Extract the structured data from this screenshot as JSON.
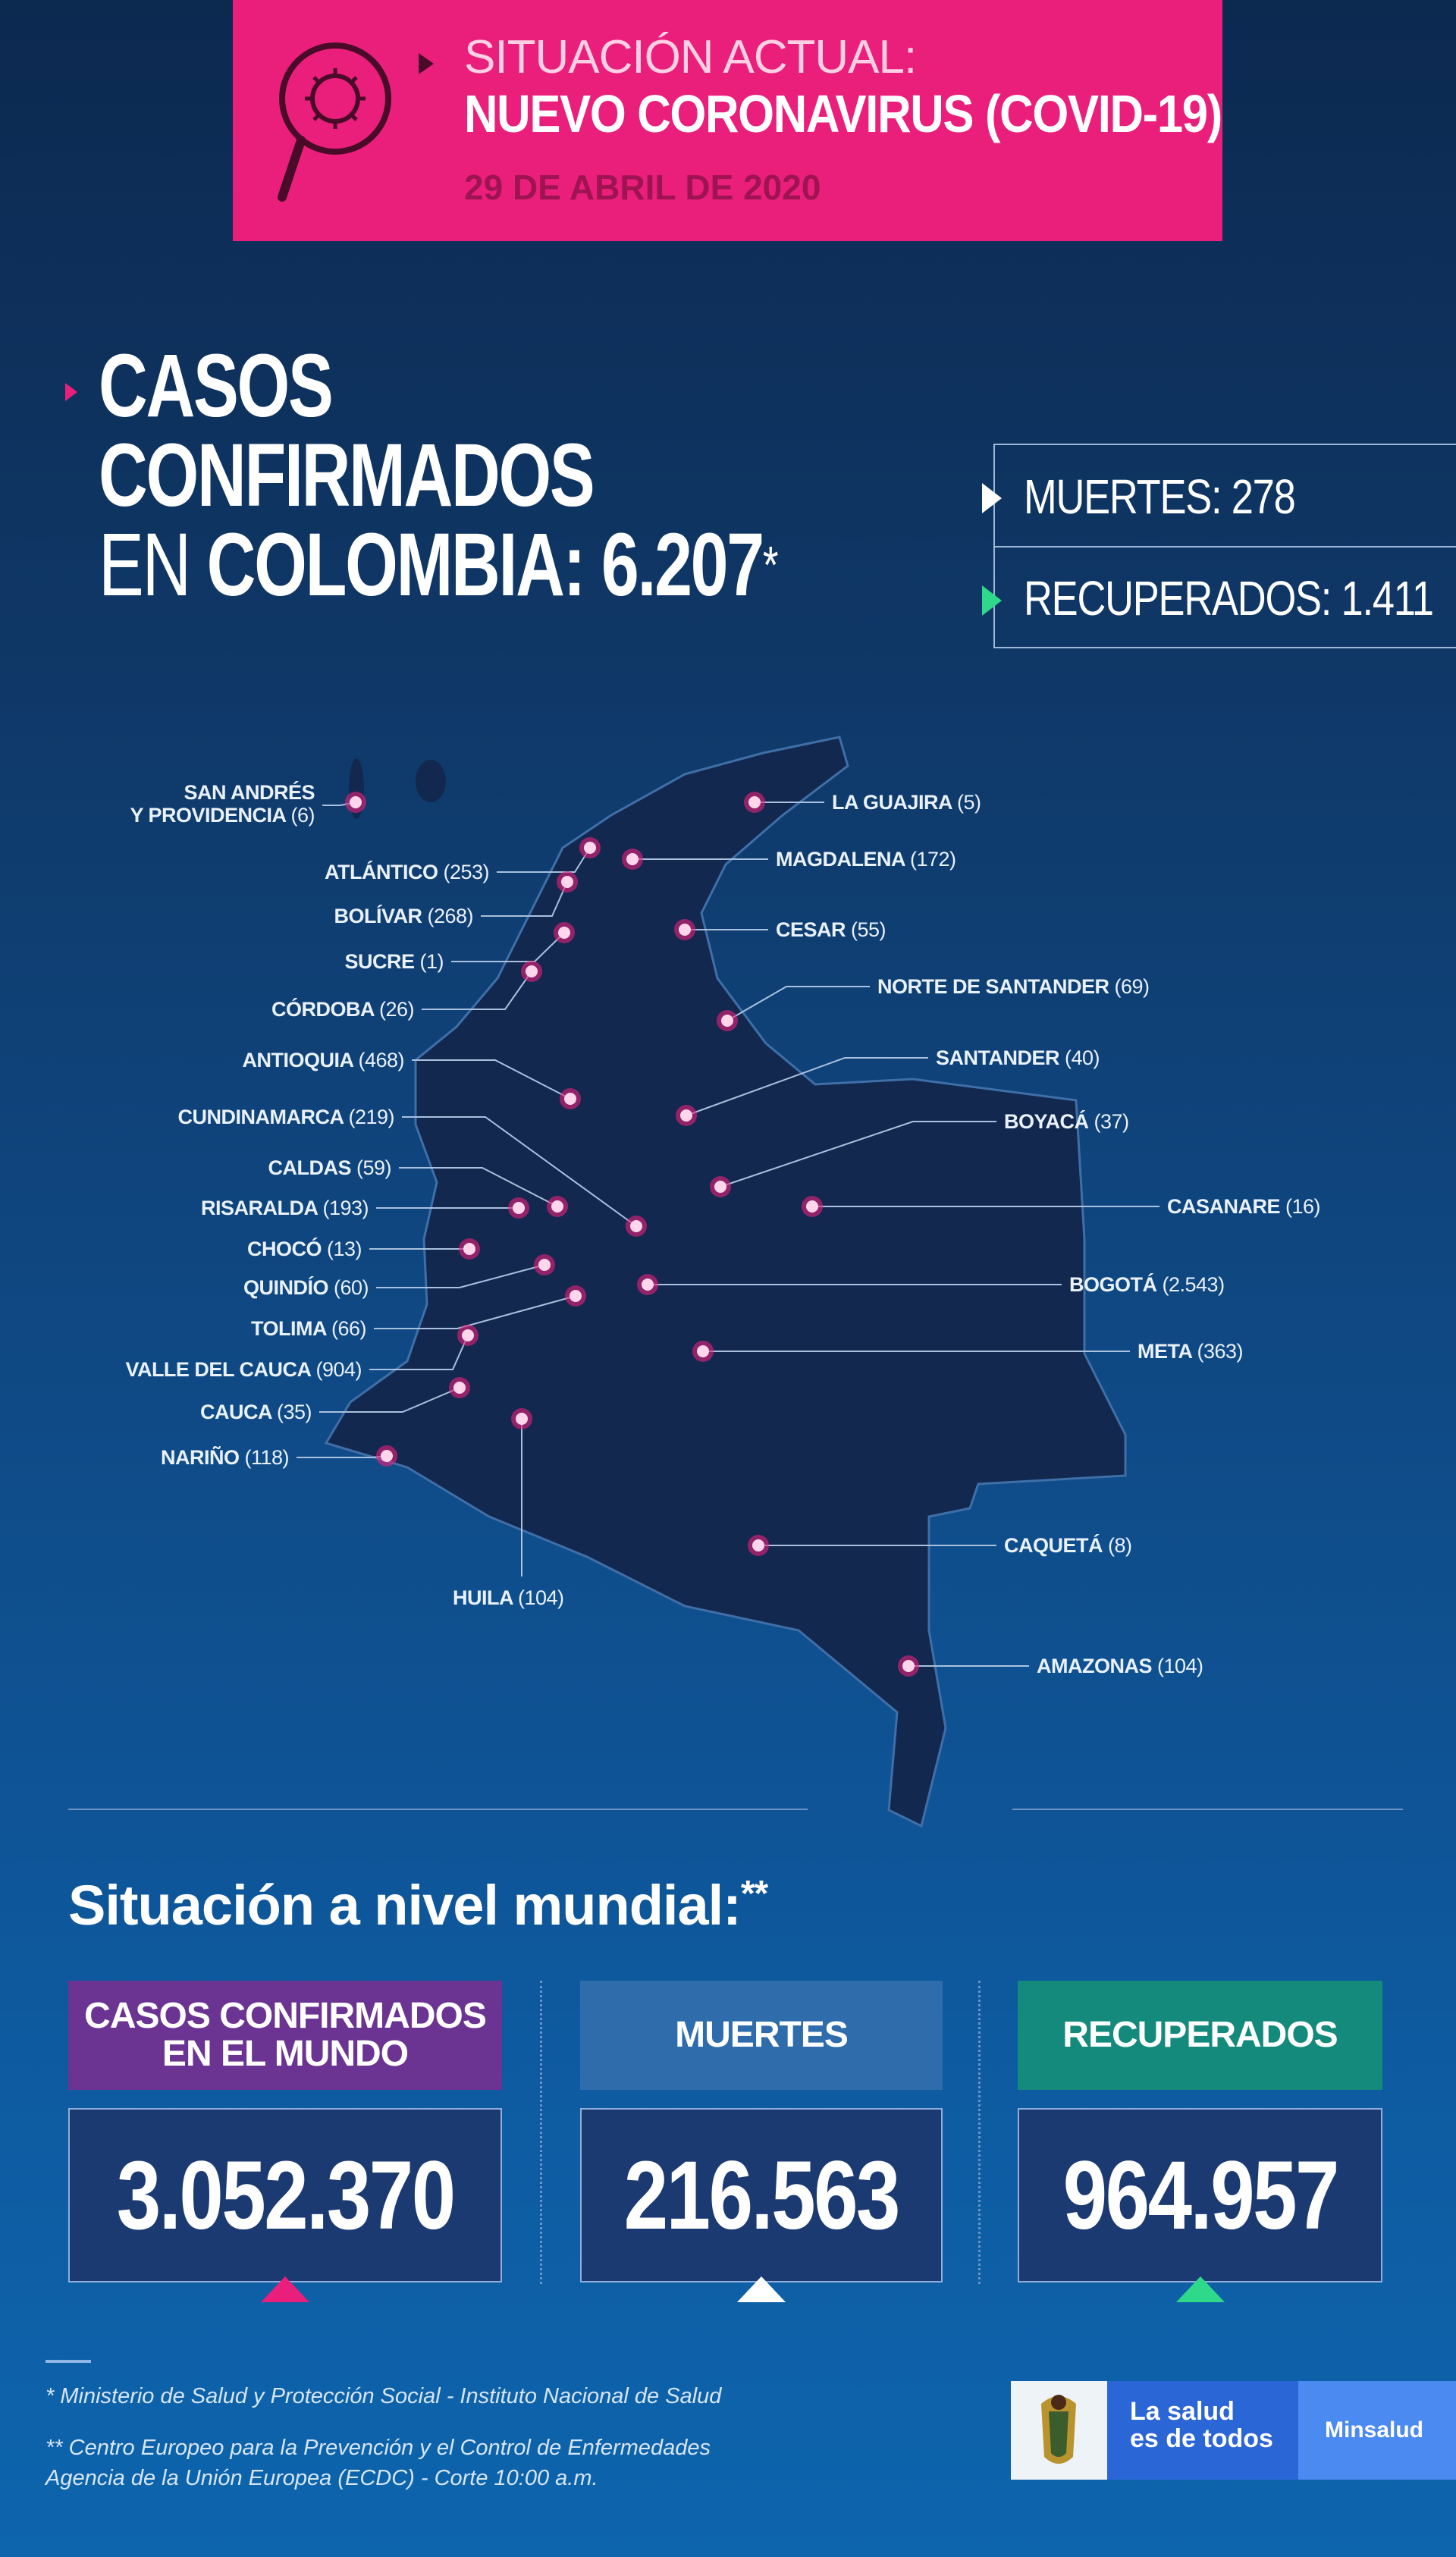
{
  "header": {
    "line1": "SITUACIÓN ACTUAL:",
    "line2": "NUEVO CORONAVIRUS (COVID-19)",
    "date": "29 DE ABRIL DE 2020",
    "icon": "magnifier-virus-icon"
  },
  "colombia": {
    "line1": "CASOS",
    "line2": "CONFIRMADOS",
    "line3_prefix": "EN",
    "line3_bold": "COLOMBIA: 6.207",
    "asterisk": "*"
  },
  "stats": {
    "deaths": "MUERTES: 278",
    "recovered": "RECUPERADOS: 1.411"
  },
  "departments": [
    {
      "name": "SAN ANDRÉS",
      "name2": "Y PROVIDENCIA",
      "count": "(6)"
    },
    {
      "name": "ATLÁNTICO",
      "count": "(253)"
    },
    {
      "name": "BOLÍVAR",
      "count": "(268)"
    },
    {
      "name": "SUCRE",
      "count": "(1)"
    },
    {
      "name": "CÓRDOBA",
      "count": "(26)"
    },
    {
      "name": "ANTIOQUIA",
      "count": "(468)"
    },
    {
      "name": "CUNDINAMARCA",
      "count": "(219)"
    },
    {
      "name": "CALDAS",
      "count": "(59)"
    },
    {
      "name": "RISARALDA",
      "count": "(193)"
    },
    {
      "name": "CHOCÓ",
      "count": "(13)"
    },
    {
      "name": "QUINDÍO",
      "count": "(60)"
    },
    {
      "name": "TOLIMA",
      "count": "(66)"
    },
    {
      "name": "VALLE DEL CAUCA",
      "count": "(904)"
    },
    {
      "name": "CAUCA",
      "count": "(35)"
    },
    {
      "name": "NARIÑO",
      "count": "(118)"
    },
    {
      "name": "HUILA",
      "count": "(104)"
    },
    {
      "name": "LA GUAJIRA",
      "count": "(5)"
    },
    {
      "name": "MAGDALENA",
      "count": "(172)"
    },
    {
      "name": "CESAR",
      "count": "(55)"
    },
    {
      "name": "NORTE DE SANTANDER",
      "count": "(69)"
    },
    {
      "name": "SANTANDER",
      "count": "(40)"
    },
    {
      "name": "BOYACÁ",
      "count": "(37)"
    },
    {
      "name": "CASANARE",
      "count": "(16)"
    },
    {
      "name": "BOGOTÁ",
      "count": "(2.543)"
    },
    {
      "name": "META",
      "count": "(363)"
    },
    {
      "name": "CAQUETÁ",
      "count": "(8)"
    },
    {
      "name": "AMAZONAS",
      "count": "(104)"
    }
  ],
  "world": {
    "title": "Situación a nivel mundial:",
    "asterisk": "**",
    "cards": [
      {
        "label1": "CASOS CONFIRMADOS",
        "label2": "EN EL MUNDO",
        "value": "3.052.370",
        "color": "#6c3492",
        "arrow": "#ea1f7b"
      },
      {
        "label1": "MUERTES",
        "label2": "",
        "value": "216.563",
        "color": "#2f6cac",
        "arrow": "#ffffff"
      },
      {
        "label1": "RECUPERADOS",
        "label2": "",
        "value": "964.957",
        "color": "#138a7c",
        "arrow": "#2fd98a"
      }
    ]
  },
  "footer": {
    "note1": "* Ministerio de Salud y Protección Social - Instituto Nacional de Salud",
    "note2a": "** Centro Europeo para la Prevención y el Control de Enfermedades",
    "note2b": "Agencia de la Unión Europea (ECDC) - Corte 10:00 a.m.",
    "logo_text1": "La salud",
    "logo_text2": "es de todos",
    "logo_brand": "Minsalud"
  },
  "colors": {
    "pink": "#ea1f7b",
    "green": "#2fd98a",
    "navy": "#0c2950"
  }
}
